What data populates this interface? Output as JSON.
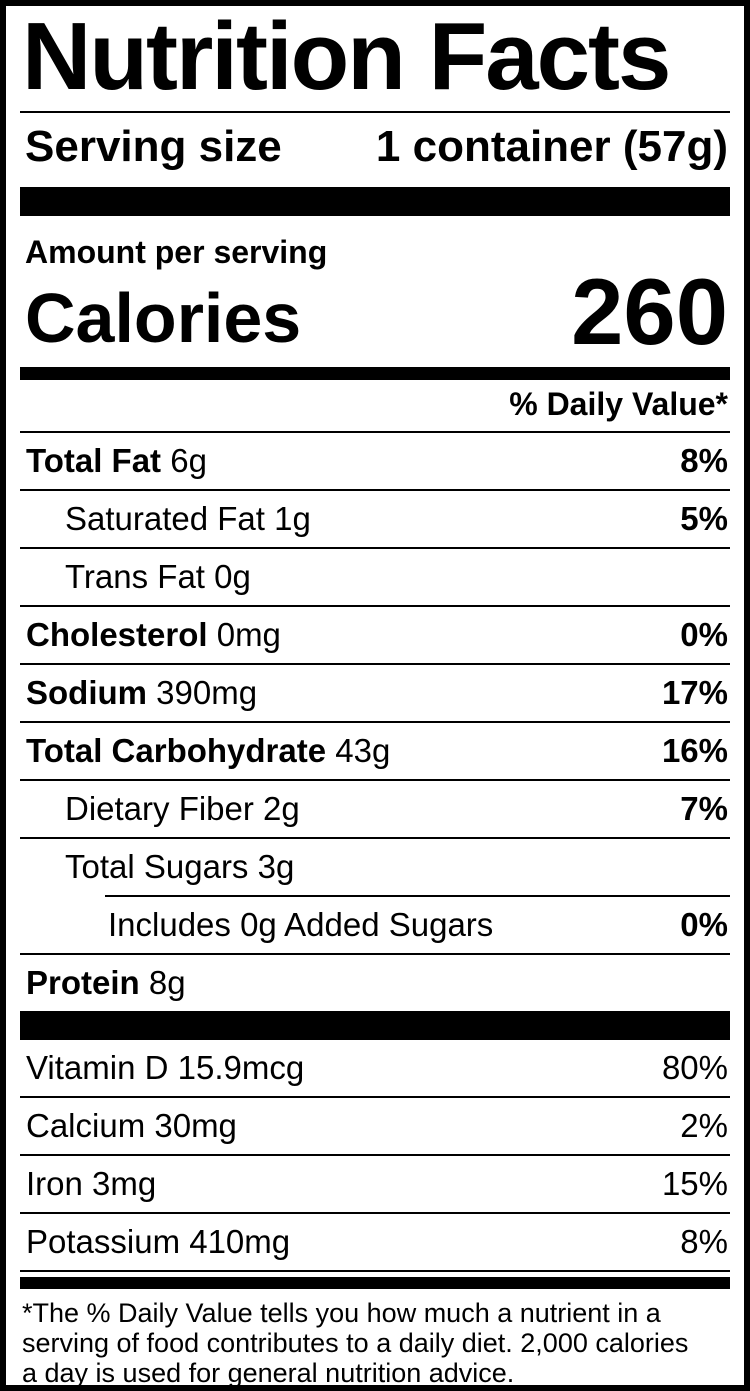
{
  "label": {
    "title": "Nutrition Facts",
    "serving_size": {
      "label": "Serving size",
      "value": "1 container (57g)"
    },
    "amount_per_serving": "Amount per serving",
    "calories": {
      "label": "Calories",
      "value": "260"
    },
    "daily_value_header": "% Daily Value*",
    "rows": [
      {
        "name_bold": "Total Fat",
        "name_rest": " 6g",
        "dv": "8%"
      },
      {
        "name_bold": "",
        "name_rest": "Saturated Fat 1g",
        "dv": "5%"
      },
      {
        "name_bold": "",
        "name_rest": "Trans Fat 0g",
        "dv": ""
      },
      {
        "name_bold": "Cholesterol",
        "name_rest": " 0mg",
        "dv": "0%"
      },
      {
        "name_bold": "Sodium",
        "name_rest": " 390mg",
        "dv": "17%"
      },
      {
        "name_bold": "Total Carbohydrate",
        "name_rest": " 43g",
        "dv": "16%"
      },
      {
        "name_bold": "",
        "name_rest": "Dietary Fiber 2g",
        "dv": "7%"
      },
      {
        "name_bold": "",
        "name_rest": "Total Sugars 3g",
        "dv": ""
      },
      {
        "name_bold": "",
        "name_rest": "Includes 0g Added Sugars",
        "dv": "0%"
      },
      {
        "name_bold": "Protein",
        "name_rest": " 8g",
        "dv": ""
      }
    ],
    "micronutrients": [
      {
        "name": "Vitamin D 15.9mcg",
        "dv": "80%"
      },
      {
        "name": "Calcium 30mg",
        "dv": "2%"
      },
      {
        "name": "Iron 3mg",
        "dv": "15%"
      },
      {
        "name": "Potassium 410mg",
        "dv": "8%"
      }
    ],
    "footnote_lines": [
      "*The % Daily Value tells you how much a nutrient in a",
      "serving of food contributes to a daily diet. 2,000 calories",
      "a day is used for general nutrition advice."
    ],
    "colors": {
      "ink": "#000000",
      "paper": "#ffffff"
    }
  }
}
